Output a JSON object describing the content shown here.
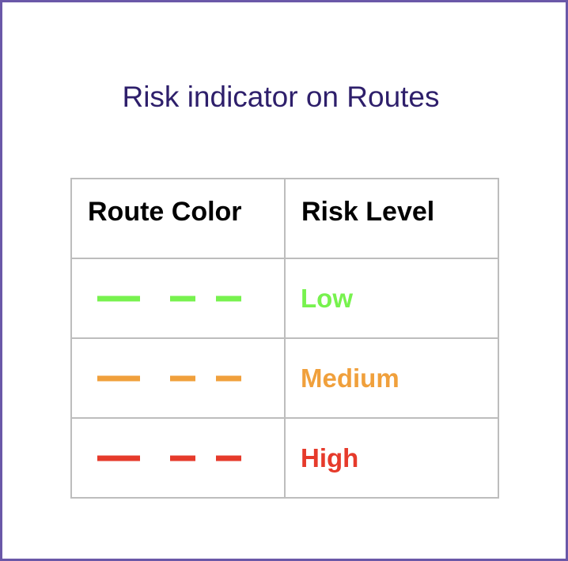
{
  "title": "Risk indicator on Routes",
  "table": {
    "headers": {
      "route_color": "Route Color",
      "risk_level": "Risk Level"
    },
    "rows": [
      {
        "risk": "Low",
        "color": "#77f24e"
      },
      {
        "risk": "Medium",
        "color": "#f0a03c"
      },
      {
        "risk": "High",
        "color": "#e63a2b"
      }
    ]
  },
  "colors": {
    "frame_border": "#6a58a8",
    "title_text": "#2e1f6b",
    "table_border": "#bdbdbd"
  }
}
